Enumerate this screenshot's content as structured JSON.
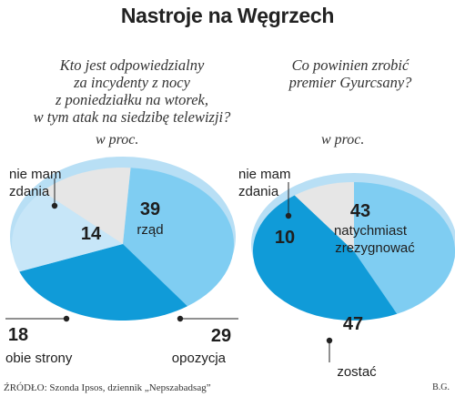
{
  "title": "Nastroje na Węgrzech",
  "source": "ŹRÓDŁO: Szonda Ipsos, dziennik „Nepszabadsag”",
  "author": "B.G.",
  "colors": {
    "dark_blue": "#109bd8",
    "light_blue": "#7fcdf2",
    "pale_blue": "#c7e6f8",
    "grey": "#e6e6e6",
    "rim": "#b8dff5"
  },
  "chart_data": [
    {
      "type": "pie",
      "question_lines": [
        "Kto jest odpowiedzialny",
        "za incydenty z nocy",
        "z poniedziałku na wtorek,",
        "w tym atak na siedzibę telewizji?"
      ],
      "unit": "w proc.",
      "slices": [
        {
          "label": "rząd",
          "value": 39
        },
        {
          "label": "opozycja",
          "value": 29
        },
        {
          "label": "obie strony",
          "value": 18
        },
        {
          "label_lines": [
            "nie mam",
            "zdania"
          ],
          "value": 14
        }
      ]
    },
    {
      "type": "pie",
      "question_lines": [
        "Co powinien zrobić",
        "premier Gyurcsany?"
      ],
      "unit": "w proc.",
      "slices": [
        {
          "label_lines": [
            "natychmiast",
            "zrezygnować"
          ],
          "value": 43
        },
        {
          "label": "zostać",
          "value": 47
        },
        {
          "label_lines": [
            "nie mam",
            "zdania"
          ],
          "value": 10
        }
      ]
    }
  ]
}
